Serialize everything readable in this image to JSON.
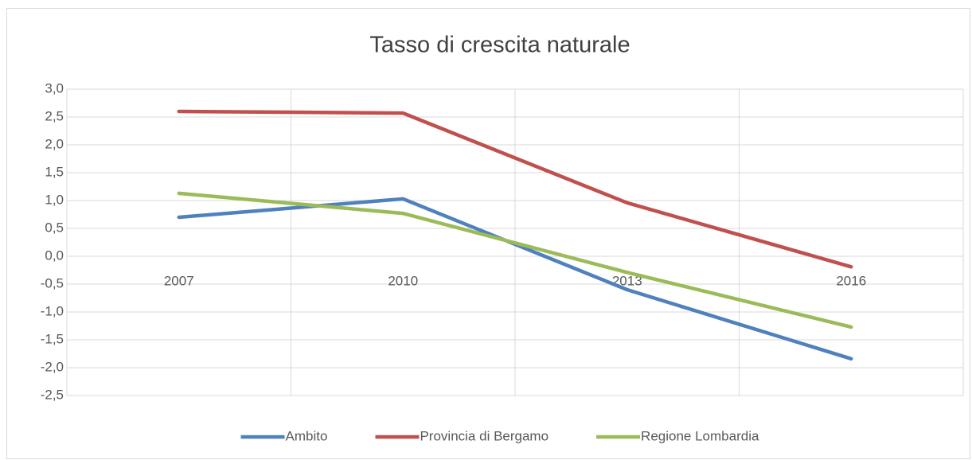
{
  "chart_data": {
    "type": "line",
    "title": "Tasso di crescita naturale",
    "categories": [
      "2007",
      "2010",
      "2013",
      "2016"
    ],
    "series": [
      {
        "name": "Ambito",
        "color": "#4f81bd",
        "values": [
          0.7,
          1.03,
          -0.6,
          -1.84
        ]
      },
      {
        "name": "Provincia di Bergamo",
        "color": "#c0504d",
        "values": [
          2.6,
          2.57,
          0.96,
          -0.19
        ]
      },
      {
        "name": "Regione Lombardia",
        "color": "#9bbb59",
        "values": [
          1.13,
          0.77,
          -0.29,
          -1.27
        ]
      }
    ],
    "ylim": [
      -2.5,
      3.0
    ],
    "yticks": [
      {
        "value": -2.5,
        "label": "-2,5"
      },
      {
        "value": -2.0,
        "label": "-2,0"
      },
      {
        "value": -1.5,
        "label": "-1,5"
      },
      {
        "value": -1.0,
        "label": "-1,0"
      },
      {
        "value": -0.5,
        "label": "-0,5"
      },
      {
        "value": 0.0,
        "label": "0,0"
      },
      {
        "value": 0.5,
        "label": "0,5"
      },
      {
        "value": 1.0,
        "label": "1,0"
      },
      {
        "value": 1.5,
        "label": "1,5"
      },
      {
        "value": 2.0,
        "label": "2,0"
      },
      {
        "value": 2.5,
        "label": "2,5"
      },
      {
        "value": 3.0,
        "label": "3,0"
      }
    ],
    "grid": true,
    "legend": "bottom"
  }
}
